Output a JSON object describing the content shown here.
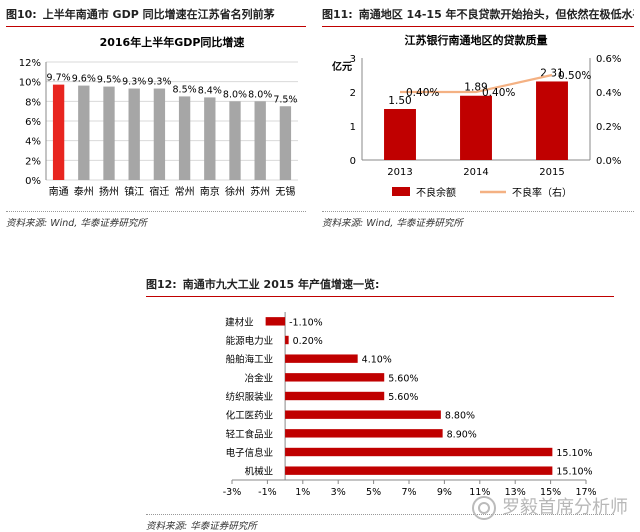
{
  "fig10": {
    "fig_no": "图10:",
    "header": "上半年南通市 GDP 同比增速在江苏省名列前茅",
    "source": "资料来源: Wind, 华泰证券研究所",
    "highlight_color": "#e8251f",
    "bar_color": "#a6a6a6"
  },
  "fig11": {
    "fig_no": "图11:",
    "header": "南通地区 14-15 年不良贷款开始抬头，但依然在极低水平",
    "source": "资料来源: Wind, 华泰证券研究所",
    "bar_color": "#c00000",
    "line_color": "#f4b183"
  },
  "fig12": {
    "fig_no": "图12:",
    "header": "南通市九大工业 2015 年产值增速一览:",
    "source": "资料来源: 华泰证券研究所",
    "bar_color": "#c00000"
  },
  "watermark": "罗毅首席分析师",
  "chart_data": [
    {
      "type": "bar",
      "title": "2016年上半年GDP同比增速",
      "categories": [
        "南通",
        "泰州",
        "扬州",
        "镇江",
        "宿迁",
        "常州",
        "南京",
        "徐州",
        "苏州",
        "无锡"
      ],
      "values": [
        9.7,
        9.6,
        9.5,
        9.3,
        9.3,
        8.5,
        8.4,
        8.0,
        8.0,
        7.5
      ],
      "data_labels": [
        "9.7%",
        "9.6%",
        "9.5%",
        "9.3%",
        "9.3%",
        "8.5%",
        "8.4%",
        "8.0%",
        "8.0%",
        "7.5%"
      ],
      "ylim": [
        0,
        12
      ],
      "yticks": [
        "0%",
        "2%",
        "4%",
        "6%",
        "8%",
        "10%",
        "12%"
      ],
      "grid": true
    },
    {
      "type": "bar",
      "title": "江苏银行南通地区的贷款质量",
      "ylabel": "亿元",
      "categories": [
        "2013",
        "2014",
        "2015"
      ],
      "series": [
        {
          "name": "不良余额",
          "type": "bar",
          "values": [
            1.5,
            1.89,
            2.31
          ],
          "labels": [
            "1.50",
            "1.89",
            "2.31"
          ],
          "axis": "left"
        },
        {
          "name": "不良率（右）",
          "type": "line",
          "values": [
            0.4,
            0.4,
            0.5
          ],
          "labels": [
            "0.40%",
            "0.40%",
            "0.50%"
          ],
          "axis": "right"
        }
      ],
      "ylim": [
        0,
        3
      ],
      "yticks": [
        "0",
        "1",
        "2",
        "3"
      ],
      "y2lim": [
        0,
        0.6
      ],
      "y2ticks": [
        "0.0%",
        "0.2%",
        "0.4%",
        "0.6%"
      ],
      "legend": "bottom"
    },
    {
      "type": "bar",
      "orientation": "horizontal",
      "categories": [
        "建材业",
        "能源电力业",
        "船舶海工业",
        "冶金业",
        "纺织服装业",
        "化工医药业",
        "轻工食品业",
        "电子信息业",
        "机械业"
      ],
      "values": [
        -1.1,
        0.2,
        4.1,
        5.6,
        5.6,
        8.8,
        8.9,
        15.1,
        15.1
      ],
      "labels": [
        "-1.10%",
        "0.20%",
        "4.10%",
        "5.60%",
        "5.60%",
        "8.80%",
        "8.90%",
        "15.10%",
        "15.10%"
      ],
      "xlim": [
        -3,
        17
      ],
      "xticks": [
        "-3%",
        "-1%",
        "1%",
        "3%",
        "5%",
        "7%",
        "9%",
        "11%",
        "13%",
        "15%",
        "17%"
      ]
    }
  ]
}
